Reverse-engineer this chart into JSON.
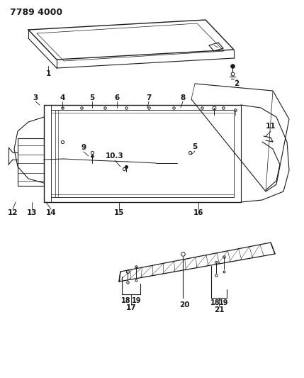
{
  "title": "7789 4000",
  "bg_color": "#ffffff",
  "line_color": "#1a1a1a",
  "title_fontsize": 9,
  "label_fontsize": 7.5,
  "fig_width": 4.29,
  "fig_height": 5.33,
  "dpi": 100
}
